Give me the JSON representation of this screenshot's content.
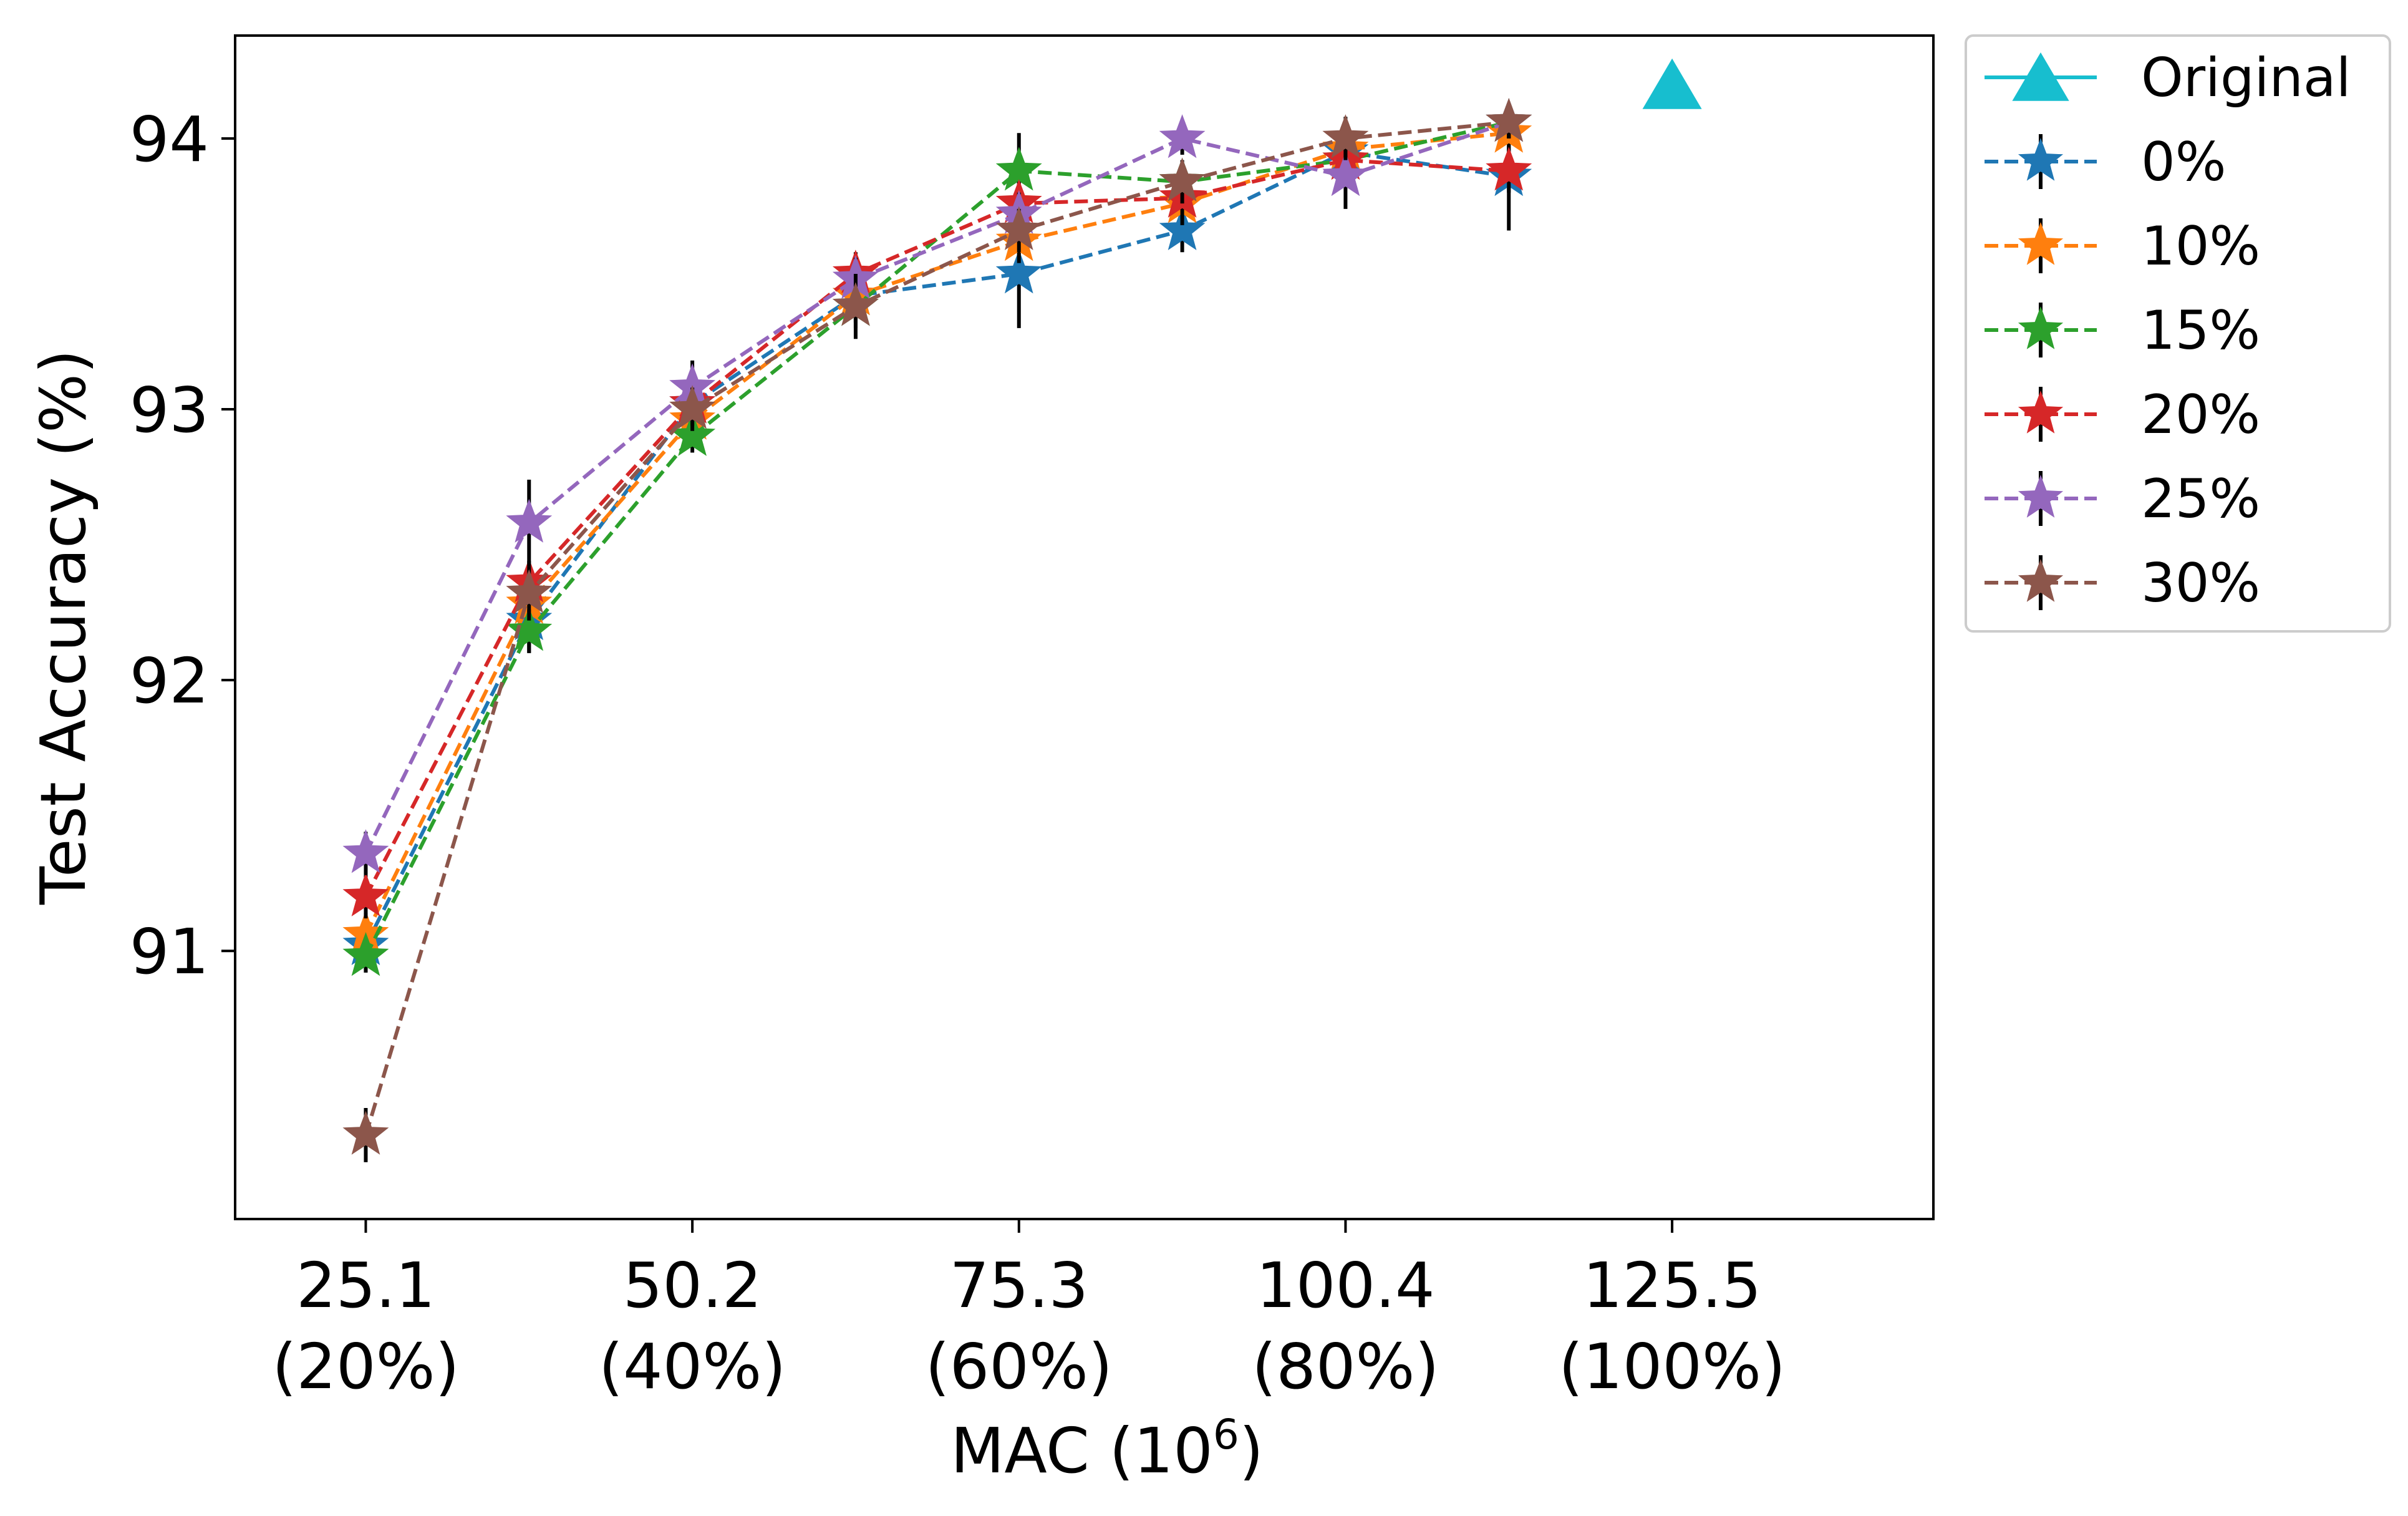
{
  "chart_data": {
    "type": "line",
    "title": "",
    "xlabel": "MAC (10",
    "xlabel_sup": "6",
    "xlabel_end": ")",
    "ylabel": "Test Accuracy (%)",
    "xlim": [
      15.06,
      145.58
    ],
    "ylim": [
      90.01,
      94.38
    ],
    "xticks": [
      {
        "value": 25.1,
        "line1": "25.1",
        "line2": "(20%)"
      },
      {
        "value": 50.2,
        "line1": "50.2",
        "line2": "(40%)"
      },
      {
        "value": 75.3,
        "line1": "75.3",
        "line2": "(60%)"
      },
      {
        "value": 100.4,
        "line1": "100.4",
        "line2": "(80%)"
      },
      {
        "value": 125.5,
        "line1": "125.5",
        "line2": "(100%)"
      }
    ],
    "yticks": [
      {
        "value": 91,
        "label": "91"
      },
      {
        "value": 92,
        "label": "92"
      },
      {
        "value": 93,
        "label": "93"
      },
      {
        "value": 94,
        "label": "94"
      }
    ],
    "grid": false,
    "legend_position": "outside-top-right",
    "original": {
      "name": "Original",
      "x": 125.5,
      "y": 94.18,
      "color": "#17becf",
      "marker": "triangle"
    },
    "x": [
      25.1,
      37.65,
      50.2,
      62.75,
      75.3,
      87.85,
      100.4,
      112.95
    ],
    "series": [
      {
        "name": "0%",
        "color": "#1f77b4",
        "values": [
          91.02,
          92.22,
          93.02,
          93.42,
          93.5,
          93.66,
          93.95,
          93.86
        ],
        "errors": [
          0.1,
          0.12,
          0.08,
          0.1,
          0.2,
          0.08,
          0.1,
          0.2
        ]
      },
      {
        "name": "10%",
        "color": "#ff7f0e",
        "values": [
          91.06,
          92.28,
          92.96,
          93.42,
          93.62,
          93.76,
          93.96,
          94.02
        ],
        "errors": [
          0.08,
          0.08,
          0.08,
          0.08,
          0.08,
          0.08,
          0.08,
          0.08
        ]
      },
      {
        "name": "15%",
        "color": "#2ca02c",
        "values": [
          90.98,
          92.18,
          92.9,
          93.38,
          93.88,
          93.84,
          93.92,
          94.06
        ],
        "errors": [
          0.06,
          0.08,
          0.06,
          0.08,
          0.14,
          0.06,
          0.06,
          0.06
        ]
      },
      {
        "name": "20%",
        "color": "#d62728",
        "values": [
          91.2,
          92.36,
          93.02,
          93.5,
          93.76,
          93.78,
          93.92,
          93.88
        ],
        "errors": [
          0.08,
          0.08,
          0.08,
          0.08,
          0.08,
          0.08,
          0.08,
          0.08
        ]
      },
      {
        "name": "25%",
        "color": "#9467bd",
        "values": [
          91.36,
          92.58,
          93.08,
          93.48,
          93.72,
          94.0,
          93.86,
          94.06
        ],
        "errors": [
          0.08,
          0.16,
          0.1,
          0.08,
          0.08,
          0.06,
          0.12,
          0.06
        ]
      },
      {
        "name": "30%",
        "color": "#8c564b",
        "values": [
          90.32,
          92.32,
          93.0,
          93.38,
          93.66,
          93.84,
          94.0,
          94.06
        ],
        "errors": [
          0.1,
          0.1,
          0.08,
          0.12,
          0.08,
          0.08,
          0.08,
          0.06
        ]
      }
    ]
  }
}
